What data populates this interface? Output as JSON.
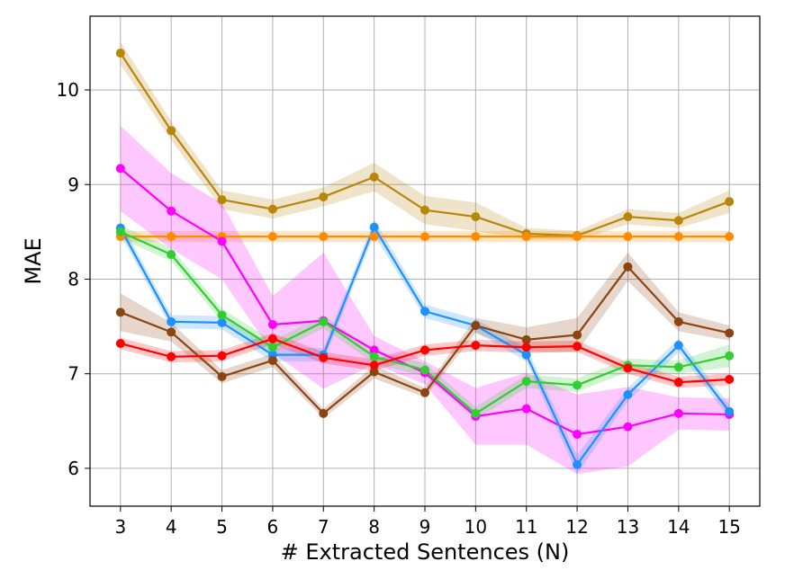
{
  "chart_data": {
    "type": "line",
    "title": "",
    "xlabel": "# Extracted Sentences (N)",
    "ylabel": "MAE",
    "xlim": [
      2.4,
      15.6
    ],
    "ylim": [
      5.6,
      10.78
    ],
    "grid": true,
    "x": [
      3,
      4,
      5,
      6,
      7,
      8,
      9,
      10,
      11,
      12,
      13,
      14,
      15
    ],
    "xticks": [
      "3",
      "4",
      "5",
      "6",
      "7",
      "8",
      "9",
      "10",
      "11",
      "12",
      "13",
      "14",
      "15"
    ],
    "yticks": [
      6,
      7,
      8,
      9,
      10
    ],
    "series": [
      {
        "name": "gold",
        "color": "#b8860b",
        "values": [
          10.39,
          9.57,
          8.84,
          8.74,
          8.87,
          9.08,
          8.73,
          8.66,
          8.48,
          8.46,
          8.66,
          8.62,
          8.82
        ],
        "band": [
          0.12,
          0.1,
          0.1,
          0.1,
          0.1,
          0.15,
          0.15,
          0.15,
          0.06,
          0.05,
          0.08,
          0.08,
          0.12
        ]
      },
      {
        "name": "orange",
        "color": "#ff8c00",
        "values": [
          8.45,
          8.45,
          8.45,
          8.45,
          8.45,
          8.45,
          8.45,
          8.45,
          8.45,
          8.45,
          8.45,
          8.45,
          8.45
        ],
        "band": [
          0.06,
          0.06,
          0.06,
          0.06,
          0.06,
          0.06,
          0.06,
          0.06,
          0.06,
          0.06,
          0.06,
          0.06,
          0.06
        ]
      },
      {
        "name": "magenta",
        "color": "#ff00ff",
        "values": [
          9.17,
          8.72,
          8.4,
          7.52,
          7.56,
          7.25,
          7.01,
          6.55,
          6.63,
          6.36,
          6.44,
          6.58,
          6.57
        ],
        "band": [
          0.45,
          0.4,
          0.4,
          0.3,
          0.72,
          0.15,
          0.12,
          0.3,
          0.38,
          0.42,
          0.42,
          0.17,
          0.17
        ]
      },
      {
        "name": "blue",
        "color": "#1e90ff",
        "values": [
          8.54,
          7.55,
          7.54,
          7.2,
          7.2,
          8.55,
          7.66,
          7.51,
          7.2,
          6.04,
          6.78,
          7.3,
          6.6
        ],
        "band": [
          0.07,
          0.07,
          0.07,
          0.07,
          0.07,
          0.08,
          0.07,
          0.07,
          0.07,
          0.1,
          0.07,
          0.07,
          0.07
        ]
      },
      {
        "name": "green",
        "color": "#32cd32",
        "values": [
          8.5,
          8.26,
          7.62,
          7.28,
          7.55,
          7.18,
          7.04,
          6.58,
          6.92,
          6.88,
          7.09,
          7.07,
          7.19
        ],
        "band": [
          0.07,
          0.07,
          0.07,
          0.07,
          0.07,
          0.07,
          0.07,
          0.07,
          0.07,
          0.07,
          0.07,
          0.07,
          0.12
        ]
      },
      {
        "name": "brown",
        "color": "#8b4513",
        "values": [
          7.65,
          7.44,
          6.97,
          7.14,
          6.58,
          7.02,
          6.8,
          7.51,
          7.36,
          7.41,
          8.13,
          7.55,
          7.43
        ],
        "band": [
          0.2,
          0.1,
          0.07,
          0.07,
          0.05,
          0.07,
          0.05,
          0.08,
          0.13,
          0.18,
          0.15,
          0.1,
          0.08
        ]
      },
      {
        "name": "red",
        "color": "#ff0000",
        "values": [
          7.32,
          7.18,
          7.19,
          7.37,
          7.17,
          7.09,
          7.25,
          7.3,
          7.28,
          7.29,
          7.06,
          6.91,
          6.94
        ],
        "band": [
          0.06,
          0.06,
          0.06,
          0.06,
          0.06,
          0.06,
          0.06,
          0.06,
          0.06,
          0.06,
          0.06,
          0.06,
          0.06
        ]
      }
    ]
  }
}
